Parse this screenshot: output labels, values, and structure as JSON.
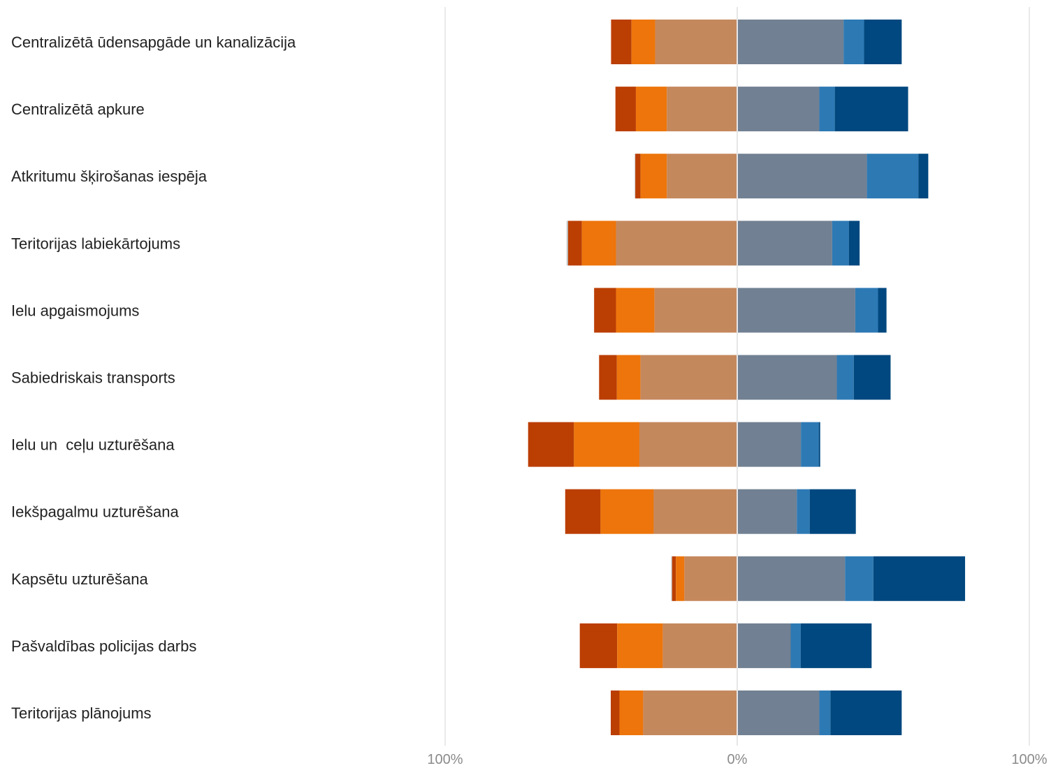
{
  "chart_data": {
    "type": "bar",
    "orientation": "horizontal-diverging-stacked",
    "categories": [
      "Centralizētā ūdensapgāde un kanalizācija",
      "Centralizētā apkure",
      "Atkritumu šķirošanas iespēja",
      "Teritorijas labiekārtojums",
      "Ielu apgaismojums",
      "Sabiedriskais transports",
      "Ielu un  ceļu uzturēšana",
      "Iekšpagalmu uzturēšana",
      "Kapsētu uzturēšana",
      "Pašvaldības policijas darbs",
      "Teritorijas plānojums"
    ],
    "series": [
      {
        "side": "negative",
        "color": "#c0c0c0",
        "values": [
          0,
          0,
          0.2,
          0.5,
          0,
          0,
          0,
          0,
          0.3,
          0,
          0
        ]
      },
      {
        "side": "negative",
        "color": "#bb3e03",
        "values": [
          7,
          7,
          1.8,
          4.7,
          7.5,
          6.1,
          15.7,
          12.1,
          1.3,
          12.8,
          3
        ]
      },
      {
        "side": "negative",
        "color": "#ed750b",
        "values": [
          8.1,
          10.6,
          9,
          11.7,
          13.2,
          8.1,
          22.4,
          18.2,
          2.9,
          15.6,
          8.1
        ]
      },
      {
        "side": "negative",
        "color": "#c4885d",
        "values": [
          28.1,
          24.1,
          24.1,
          41.5,
          28.3,
          33.1,
          33.5,
          28.6,
          18.1,
          25.5,
          32.2
        ]
      },
      {
        "side": "positive",
        "color": "#718092",
        "values": [
          36.4,
          28.1,
          44.4,
          32.5,
          40.4,
          34.1,
          21.8,
          20.4,
          36.9,
          18.3,
          28.1
        ]
      },
      {
        "side": "positive",
        "color": "#2d79b4",
        "values": [
          7,
          5.3,
          17.6,
          5.7,
          7.8,
          5.8,
          6.1,
          4.4,
          9.7,
          3.4,
          3.8
        ]
      },
      {
        "side": "positive",
        "color": "#00487f",
        "values": [
          12.9,
          25.1,
          3.4,
          3.7,
          2.9,
          12.6,
          0.5,
          15.8,
          31.4,
          24.3,
          24.4
        ]
      }
    ],
    "xlim": [
      -100,
      100
    ],
    "x_ticks": [
      {
        "value": -100,
        "label": "100%"
      },
      {
        "value": 0,
        "label": "0%"
      },
      {
        "value": 100,
        "label": "100%"
      }
    ],
    "grid": true,
    "legend": "none"
  }
}
